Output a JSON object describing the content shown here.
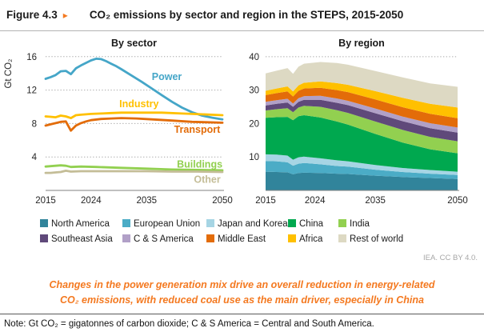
{
  "header": {
    "figure_label": "Figure 4.3",
    "arrow": "▸",
    "title": "CO₂ emissions by sector and region in the STEPS, 2015-2050"
  },
  "chart_data": [
    {
      "type": "line",
      "title": "By sector",
      "ylabel": "Gt CO₂",
      "xlim": [
        2015,
        2050
      ],
      "ylim": [
        0,
        17.5
      ],
      "yticks": [
        4,
        8,
        12,
        16
      ],
      "xticks": [
        2015,
        2024,
        2035,
        2050
      ],
      "grid": "horizontal-dotted",
      "legend_position": "inline-labels",
      "series": [
        {
          "name": "Power",
          "color": "#45a6c8",
          "label_at": [
            2039,
            13.6
          ],
          "points": [
            [
              2015,
              13.35
            ],
            [
              2016,
              13.55
            ],
            [
              2017,
              13.8
            ],
            [
              2018,
              14.25
            ],
            [
              2019,
              14.3
            ],
            [
              2020,
              13.9
            ],
            [
              2021,
              14.6
            ],
            [
              2022,
              14.95
            ],
            [
              2023,
              15.25
            ],
            [
              2024,
              15.55
            ],
            [
              2025,
              15.75
            ],
            [
              2026,
              15.7
            ],
            [
              2027,
              15.45
            ],
            [
              2028,
              15.15
            ],
            [
              2029,
              14.85
            ],
            [
              2030,
              14.5
            ],
            [
              2032,
              13.75
            ],
            [
              2034,
              13.0
            ],
            [
              2036,
              12.2
            ],
            [
              2038,
              11.4
            ],
            [
              2040,
              10.6
            ],
            [
              2042,
              9.9
            ],
            [
              2044,
              9.35
            ],
            [
              2046,
              8.95
            ],
            [
              2048,
              8.7
            ],
            [
              2050,
              8.5
            ]
          ]
        },
        {
          "name": "Industry",
          "color": "#ffc000",
          "label_at": [
            2033.5,
            10.35
          ],
          "points": [
            [
              2015,
              8.85
            ],
            [
              2016,
              8.8
            ],
            [
              2017,
              8.75
            ],
            [
              2018,
              8.95
            ],
            [
              2019,
              8.85
            ],
            [
              2020,
              8.65
            ],
            [
              2021,
              9.0
            ],
            [
              2022,
              9.05
            ],
            [
              2024,
              9.15
            ],
            [
              2026,
              9.2
            ],
            [
              2028,
              9.25
            ],
            [
              2030,
              9.3
            ],
            [
              2034,
              9.3
            ],
            [
              2038,
              9.3
            ],
            [
              2042,
              9.2
            ],
            [
              2046,
              9.1
            ],
            [
              2050,
              9.0
            ]
          ]
        },
        {
          "name": "Transport",
          "color": "#e36c09",
          "label_at": [
            2045,
            7.25
          ],
          "points": [
            [
              2015,
              7.75
            ],
            [
              2016,
              7.9
            ],
            [
              2017,
              8.05
            ],
            [
              2018,
              8.2
            ],
            [
              2019,
              8.25
            ],
            [
              2020,
              7.15
            ],
            [
              2021,
              7.75
            ],
            [
              2022,
              8.05
            ],
            [
              2023,
              8.25
            ],
            [
              2024,
              8.4
            ],
            [
              2026,
              8.55
            ],
            [
              2028,
              8.6
            ],
            [
              2030,
              8.65
            ],
            [
              2033,
              8.6
            ],
            [
              2036,
              8.5
            ],
            [
              2040,
              8.35
            ],
            [
              2044,
              8.2
            ],
            [
              2047,
              8.15
            ],
            [
              2050,
              8.1
            ]
          ]
        },
        {
          "name": "Buildings",
          "color": "#92d050",
          "label_at": [
            2045.5,
            3.1
          ],
          "points": [
            [
              2015,
              2.85
            ],
            [
              2016,
              2.9
            ],
            [
              2017,
              2.95
            ],
            [
              2018,
              3.0
            ],
            [
              2019,
              2.95
            ],
            [
              2020,
              2.8
            ],
            [
              2022,
              2.85
            ],
            [
              2025,
              2.8
            ],
            [
              2030,
              2.7
            ],
            [
              2035,
              2.6
            ],
            [
              2040,
              2.5
            ],
            [
              2045,
              2.45
            ],
            [
              2050,
              2.4
            ]
          ]
        },
        {
          "name": "Other",
          "color": "#c4bd97",
          "label_at": [
            2047,
            1.3
          ],
          "points": [
            [
              2015,
              2.1
            ],
            [
              2016,
              2.1
            ],
            [
              2017,
              2.15
            ],
            [
              2018,
              2.2
            ],
            [
              2019,
              2.35
            ],
            [
              2020,
              2.25
            ],
            [
              2022,
              2.3
            ],
            [
              2025,
              2.3
            ],
            [
              2030,
              2.3
            ],
            [
              2035,
              2.3
            ],
            [
              2040,
              2.25
            ],
            [
              2045,
              2.25
            ],
            [
              2050,
              2.2
            ]
          ]
        }
      ]
    },
    {
      "type": "area",
      "stacked": true,
      "title": "By region",
      "xlim": [
        2015,
        2050
      ],
      "ylim": [
        0,
        43
      ],
      "yticks": [
        10,
        20,
        30,
        40
      ],
      "xticks": [
        2015,
        2024,
        2035,
        2050
      ],
      "grid": "horizontal-dotted",
      "x": [
        2015,
        2017,
        2019,
        2020,
        2021,
        2022,
        2025,
        2028,
        2030,
        2035,
        2040,
        2045,
        2050
      ],
      "stack_order": "bottom-to-top",
      "series": [
        {
          "name": "North America",
          "color": "#31849b",
          "values": [
            5.6,
            5.5,
            5.4,
            4.8,
            5.2,
            5.3,
            5.2,
            5.0,
            4.9,
            4.4,
            4.0,
            3.7,
            3.4
          ]
        },
        {
          "name": "European Union",
          "color": "#4bacc6",
          "values": [
            3.2,
            3.2,
            3.0,
            2.6,
            2.8,
            2.9,
            2.6,
            2.3,
            2.2,
            1.8,
            1.5,
            1.3,
            1.2
          ]
        },
        {
          "name": "Japan and Korea",
          "color": "#a6d5e4",
          "values": [
            2.0,
            2.0,
            2.0,
            1.8,
            1.9,
            1.9,
            1.8,
            1.7,
            1.6,
            1.4,
            1.2,
            1.1,
            1.0
          ]
        },
        {
          "name": "China",
          "color": "#00a84f",
          "values": [
            10.9,
            11.2,
            11.6,
            11.8,
            12.3,
            12.4,
            12.2,
            11.6,
            11.0,
            9.3,
            7.6,
            6.2,
            5.5
          ]
        },
        {
          "name": "India",
          "color": "#92d050",
          "values": [
            2.2,
            2.4,
            2.6,
            2.4,
            2.6,
            2.8,
            3.2,
            3.4,
            3.5,
            3.7,
            3.8,
            3.7,
            3.6
          ]
        },
        {
          "name": "Southeast Asia",
          "color": "#5f497a",
          "values": [
            1.5,
            1.6,
            1.7,
            1.6,
            1.7,
            1.8,
            2.1,
            2.2,
            2.3,
            2.5,
            2.6,
            2.6,
            2.6
          ]
        },
        {
          "name": "C & S America",
          "color": "#b1a0c7",
          "values": [
            1.1,
            1.1,
            1.1,
            1.0,
            1.1,
            1.1,
            1.2,
            1.3,
            1.3,
            1.4,
            1.4,
            1.5,
            1.5
          ]
        },
        {
          "name": "Middle East",
          "color": "#e36c09",
          "values": [
            2.0,
            2.1,
            2.2,
            2.1,
            2.2,
            2.3,
            2.4,
            2.5,
            2.6,
            2.7,
            2.8,
            2.8,
            2.8
          ]
        },
        {
          "name": "Africa",
          "color": "#ffc000",
          "values": [
            1.3,
            1.4,
            1.5,
            1.5,
            1.6,
            1.7,
            1.9,
            2.1,
            2.2,
            2.5,
            2.8,
            3.0,
            3.2
          ]
        },
        {
          "name": "Rest of world",
          "color": "#ddd9c3",
          "values": [
            5.2,
            5.3,
            5.5,
            5.3,
            5.6,
            5.7,
            5.8,
            6.0,
            6.0,
            6.0,
            6.1,
            6.1,
            6.2
          ]
        }
      ]
    }
  ],
  "legend": {
    "items": [
      {
        "label": "North America",
        "color": "#31849b"
      },
      {
        "label": "European Union",
        "color": "#4bacc6"
      },
      {
        "label": "Japan and Korea",
        "color": "#a6d5e4"
      },
      {
        "label": "China",
        "color": "#00a84f"
      },
      {
        "label": "India",
        "color": "#92d050"
      },
      {
        "label": "Southeast Asia",
        "color": "#5f497a"
      },
      {
        "label": "C & S America",
        "color": "#b1a0c7"
      },
      {
        "label": "Middle East",
        "color": "#e36c09"
      },
      {
        "label": "Africa",
        "color": "#ffc000"
      },
      {
        "label": "Rest of world",
        "color": "#ddd9c3"
      }
    ]
  },
  "attribution": "IEA. CC BY 4.0.",
  "caption": {
    "line1": "Changes in the power generation mix drive an overall reduction in energy-related",
    "line2": "CO₂ emissions, with reduced coal use as the main driver, especially in China"
  },
  "note": "Note: Gt CO₂ = gigatonnes of carbon dioxide; C & S America = Central and South America."
}
